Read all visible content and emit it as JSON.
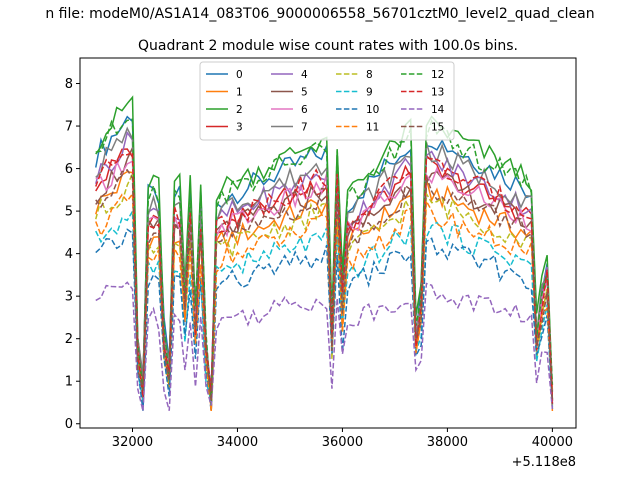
{
  "chart_data": {
    "type": "line",
    "suptitle": "n file: modeM0/AS1A14_083T06_9000006558_56701cztM0_level2_quad_clean",
    "title": "Quadrant 2 module wise count rates with 100.0s bins.",
    "xlabel": "",
    "ylabel": "",
    "x_offset_label": "+5.118e8",
    "xlim": [
      31000,
      40450
    ],
    "ylim": [
      -0.1,
      8.6
    ],
    "xticks": [
      32000,
      34000,
      36000,
      38000,
      40000
    ],
    "xtick_labels": [
      "32000",
      "34000",
      "36000",
      "38000",
      "40000"
    ],
    "yticks": [
      0,
      1,
      2,
      3,
      4,
      5,
      6,
      7,
      8
    ],
    "ytick_labels": [
      "0",
      "1",
      "2",
      "3",
      "4",
      "5",
      "6",
      "7",
      "8"
    ],
    "legend_position": "upper-center",
    "x_start": 31300,
    "x_step": 100,
    "dip_points": [
      [
        32100,
        0.3
      ],
      [
        32200,
        0.15
      ],
      [
        32600,
        0.35
      ],
      [
        32700,
        0.2
      ],
      [
        33000,
        0.5
      ],
      [
        33200,
        0.4
      ],
      [
        33400,
        0.3
      ],
      [
        33500,
        0.1
      ],
      [
        35800,
        0.35
      ],
      [
        36000,
        0.5
      ],
      [
        37400,
        0.35
      ],
      [
        37500,
        0.5
      ],
      [
        39700,
        0.35
      ],
      [
        39800,
        0.5
      ],
      [
        39900,
        0.6
      ],
      [
        40000,
        0.1
      ]
    ],
    "series": [
      {
        "name": "0",
        "color": "#1f77b4",
        "style": "solid",
        "level": 6.3
      },
      {
        "name": "1",
        "color": "#ff7f0e",
        "style": "solid",
        "level": 5.1
      },
      {
        "name": "2",
        "color": "#2ca02c",
        "style": "solid",
        "level": 6.6
      },
      {
        "name": "3",
        "color": "#d62728",
        "style": "solid",
        "level": 5.6
      },
      {
        "name": "4",
        "color": "#9467bd",
        "style": "solid",
        "level": 5.8
      },
      {
        "name": "5",
        "color": "#8c564b",
        "style": "solid",
        "level": 5.4
      },
      {
        "name": "6",
        "color": "#e377c2",
        "style": "solid",
        "level": 5.5
      },
      {
        "name": "7",
        "color": "#7f7f7f",
        "style": "solid",
        "level": 6.0
      },
      {
        "name": "8",
        "color": "#bcbd22",
        "style": "dashed",
        "level": 4.9
      },
      {
        "name": "9",
        "color": "#17becf",
        "style": "dashed",
        "level": 4.3
      },
      {
        "name": "10",
        "color": "#1f77b4",
        "style": "dashed",
        "level": 3.9
      },
      {
        "name": "11",
        "color": "#ff7f0e",
        "style": "dashed",
        "level": 4.6
      },
      {
        "name": "12",
        "color": "#2ca02c",
        "style": "dashed",
        "level": 6.4
      },
      {
        "name": "13",
        "color": "#d62728",
        "style": "dashed",
        "level": 5.7
      },
      {
        "name": "14",
        "color": "#9467bd",
        "style": "dashed",
        "level": 2.9
      },
      {
        "name": "15",
        "color": "#8c564b",
        "style": "dashed",
        "level": 5.2
      }
    ]
  }
}
